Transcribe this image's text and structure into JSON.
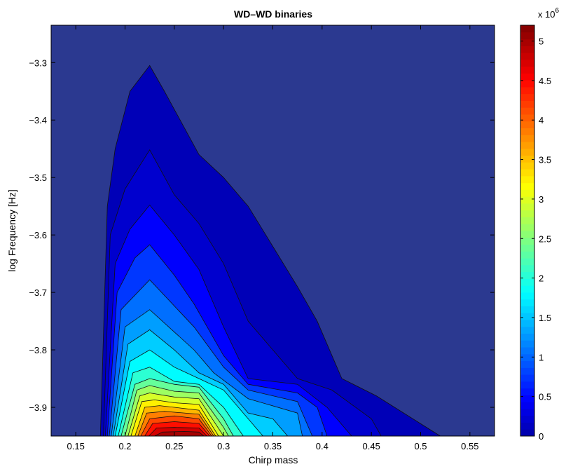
{
  "chart_data": {
    "type": "contour",
    "title": "WD–WD binaries",
    "xlabel": "Chirp mass",
    "ylabel": "log Frequency [Hz]",
    "xlim": [
      0.125,
      0.575
    ],
    "ylim": [
      -3.95,
      -3.235
    ],
    "xticks": [
      0.15,
      0.2,
      0.25,
      0.3,
      0.35,
      0.4,
      0.45,
      0.5,
      0.55
    ],
    "xtick_labels": [
      "0.15",
      "0.2",
      "0.25",
      "0.3",
      "0.35",
      "0.4",
      "0.45",
      "0.5",
      "0.55"
    ],
    "yticks": [
      -3.3,
      -3.4,
      -3.5,
      -3.6,
      -3.7,
      -3.8,
      -3.9
    ],
    "ytick_labels": [
      "−3.3",
      "−3.4",
      "−3.5",
      "−3.6",
      "−3.7",
      "−3.8",
      "−3.9"
    ],
    "colorbar": {
      "range": [
        0,
        5200000
      ],
      "ticks": [
        0,
        500000,
        1000000,
        1500000,
        2000000,
        2500000,
        3000000,
        3500000,
        4000000,
        4500000,
        5000000
      ],
      "tick_labels": [
        "0",
        "0.5",
        "1",
        "1.5",
        "2",
        "2.5",
        "3",
        "3.5",
        "4",
        "4.5",
        "5"
      ],
      "scale_prefix": "x 10",
      "scale_exponent": "6",
      "colormap": "jet",
      "levels": 60
    },
    "contours": [
      {
        "level": 0.08,
        "points": [
          [
            0.175,
            -3.95
          ],
          [
            0.182,
            -3.55
          ],
          [
            0.19,
            -3.45
          ],
          [
            0.205,
            -3.35
          ],
          [
            0.225,
            -3.305
          ],
          [
            0.24,
            -3.35
          ],
          [
            0.275,
            -3.46
          ],
          [
            0.3,
            -3.5
          ],
          [
            0.325,
            -3.55
          ],
          [
            0.35,
            -3.62
          ],
          [
            0.375,
            -3.69
          ],
          [
            0.395,
            -3.75
          ],
          [
            0.42,
            -3.85
          ],
          [
            0.455,
            -3.88
          ],
          [
            0.52,
            -3.95
          ]
        ]
      },
      {
        "level": 0.2,
        "points": [
          [
            0.178,
            -3.95
          ],
          [
            0.185,
            -3.6
          ],
          [
            0.2,
            -3.52
          ],
          [
            0.225,
            -3.452
          ],
          [
            0.25,
            -3.53
          ],
          [
            0.275,
            -3.58
          ],
          [
            0.3,
            -3.65
          ],
          [
            0.325,
            -3.75
          ],
          [
            0.35,
            -3.8
          ],
          [
            0.375,
            -3.85
          ],
          [
            0.41,
            -3.87
          ],
          [
            0.45,
            -3.92
          ],
          [
            0.46,
            -3.95
          ]
        ]
      },
      {
        "level": 0.45,
        "points": [
          [
            0.18,
            -3.95
          ],
          [
            0.19,
            -3.65
          ],
          [
            0.205,
            -3.59
          ],
          [
            0.225,
            -3.548
          ],
          [
            0.25,
            -3.6
          ],
          [
            0.275,
            -3.66
          ],
          [
            0.3,
            -3.76
          ],
          [
            0.325,
            -3.85
          ],
          [
            0.35,
            -3.855
          ],
          [
            0.375,
            -3.86
          ],
          [
            0.405,
            -3.9
          ],
          [
            0.43,
            -3.95
          ]
        ]
      },
      {
        "level": 0.75,
        "points": [
          [
            0.182,
            -3.95
          ],
          [
            0.192,
            -3.7
          ],
          [
            0.21,
            -3.64
          ],
          [
            0.225,
            -3.617
          ],
          [
            0.25,
            -3.67
          ],
          [
            0.27,
            -3.72
          ],
          [
            0.3,
            -3.81
          ],
          [
            0.325,
            -3.86
          ],
          [
            0.375,
            -3.875
          ],
          [
            0.395,
            -3.9
          ],
          [
            0.405,
            -3.95
          ]
        ]
      },
      {
        "level": 1.05,
        "points": [
          [
            0.184,
            -3.95
          ],
          [
            0.196,
            -3.73
          ],
          [
            0.225,
            -3.678
          ],
          [
            0.27,
            -3.76
          ],
          [
            0.3,
            -3.83
          ],
          [
            0.325,
            -3.87
          ],
          [
            0.375,
            -3.89
          ],
          [
            0.39,
            -3.95
          ]
        ]
      },
      {
        "level": 1.3,
        "points": [
          [
            0.186,
            -3.95
          ],
          [
            0.2,
            -3.76
          ],
          [
            0.225,
            -3.73
          ],
          [
            0.27,
            -3.8
          ],
          [
            0.29,
            -3.84
          ],
          [
            0.325,
            -3.885
          ],
          [
            0.375,
            -3.91
          ],
          [
            0.38,
            -3.95
          ]
        ]
      },
      {
        "level": 1.55,
        "points": [
          [
            0.188,
            -3.95
          ],
          [
            0.203,
            -3.79
          ],
          [
            0.225,
            -3.765
          ],
          [
            0.25,
            -3.8
          ],
          [
            0.275,
            -3.84
          ],
          [
            0.3,
            -3.86
          ],
          [
            0.325,
            -3.91
          ],
          [
            0.35,
            -3.92
          ],
          [
            0.365,
            -3.95
          ]
        ]
      },
      {
        "level": 1.8,
        "points": [
          [
            0.19,
            -3.95
          ],
          [
            0.205,
            -3.82
          ],
          [
            0.225,
            -3.8
          ],
          [
            0.25,
            -3.83
          ],
          [
            0.275,
            -3.85
          ],
          [
            0.3,
            -3.87
          ],
          [
            0.325,
            -3.92
          ],
          [
            0.34,
            -3.95
          ]
        ]
      },
      {
        "level": 2.05,
        "points": [
          [
            0.193,
            -3.95
          ],
          [
            0.208,
            -3.84
          ],
          [
            0.225,
            -3.83
          ],
          [
            0.25,
            -3.855
          ],
          [
            0.275,
            -3.86
          ],
          [
            0.3,
            -3.9
          ],
          [
            0.32,
            -3.95
          ]
        ]
      },
      {
        "level": 2.35,
        "points": [
          [
            0.196,
            -3.95
          ],
          [
            0.21,
            -3.86
          ],
          [
            0.225,
            -3.85
          ],
          [
            0.25,
            -3.86
          ],
          [
            0.275,
            -3.865
          ],
          [
            0.3,
            -3.92
          ],
          [
            0.31,
            -3.95
          ]
        ]
      },
      {
        "level": 2.65,
        "points": [
          [
            0.2,
            -3.95
          ],
          [
            0.212,
            -3.87
          ],
          [
            0.225,
            -3.862
          ],
          [
            0.25,
            -3.872
          ],
          [
            0.275,
            -3.875
          ],
          [
            0.3,
            -3.935
          ],
          [
            0.305,
            -3.95
          ]
        ]
      },
      {
        "level": 2.95,
        "points": [
          [
            0.203,
            -3.95
          ],
          [
            0.215,
            -3.88
          ],
          [
            0.225,
            -3.875
          ],
          [
            0.25,
            -3.882
          ],
          [
            0.275,
            -3.885
          ],
          [
            0.3,
            -3.95
          ]
        ]
      },
      {
        "level": 3.25,
        "points": [
          [
            0.206,
            -3.95
          ],
          [
            0.217,
            -3.89
          ],
          [
            0.23,
            -3.887
          ],
          [
            0.25,
            -3.892
          ],
          [
            0.275,
            -3.895
          ],
          [
            0.295,
            -3.95
          ]
        ]
      },
      {
        "level": 3.55,
        "points": [
          [
            0.21,
            -3.95
          ],
          [
            0.22,
            -3.9
          ],
          [
            0.235,
            -3.897
          ],
          [
            0.25,
            -3.9
          ],
          [
            0.275,
            -3.905
          ],
          [
            0.292,
            -3.95
          ]
        ]
      },
      {
        "level": 3.85,
        "points": [
          [
            0.213,
            -3.95
          ],
          [
            0.222,
            -3.91
          ],
          [
            0.24,
            -3.907
          ],
          [
            0.275,
            -3.912
          ],
          [
            0.29,
            -3.95
          ]
        ]
      },
      {
        "level": 4.15,
        "points": [
          [
            0.216,
            -3.95
          ],
          [
            0.225,
            -3.92
          ],
          [
            0.25,
            -3.915
          ],
          [
            0.275,
            -3.92
          ],
          [
            0.288,
            -3.95
          ]
        ]
      },
      {
        "level": 4.45,
        "points": [
          [
            0.22,
            -3.95
          ],
          [
            0.228,
            -3.928
          ],
          [
            0.25,
            -3.925
          ],
          [
            0.275,
            -3.928
          ],
          [
            0.286,
            -3.95
          ]
        ]
      },
      {
        "level": 4.75,
        "points": [
          [
            0.224,
            -3.95
          ],
          [
            0.232,
            -3.936
          ],
          [
            0.25,
            -3.935
          ],
          [
            0.275,
            -3.936
          ],
          [
            0.283,
            -3.95
          ]
        ]
      },
      {
        "level": 5.0,
        "points": [
          [
            0.23,
            -3.95
          ],
          [
            0.238,
            -3.943
          ],
          [
            0.26,
            -3.942
          ],
          [
            0.275,
            -3.943
          ],
          [
            0.28,
            -3.95
          ]
        ]
      }
    ]
  }
}
